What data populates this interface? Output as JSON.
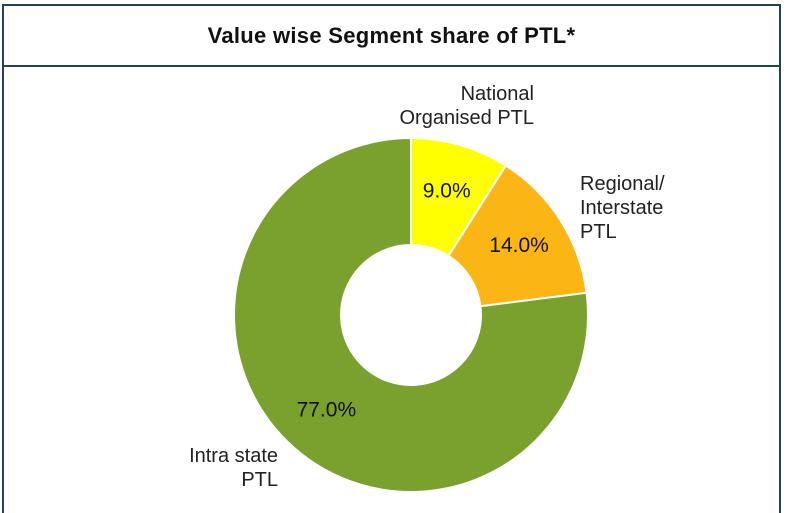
{
  "chart_data": {
    "type": "donut",
    "title": "Value wise Segment share of PTL*",
    "categories": [
      "National\nOrganised PTL",
      "Regional/\nInterstate\nPTL",
      "Intra state\nPTL"
    ],
    "values": [
      9,
      14,
      77
    ],
    "value_labels": [
      "9.0%",
      "14.0%",
      "77.0%"
    ],
    "colors": [
      "#ffff00",
      "#fbb616",
      "#7aa12e"
    ]
  }
}
